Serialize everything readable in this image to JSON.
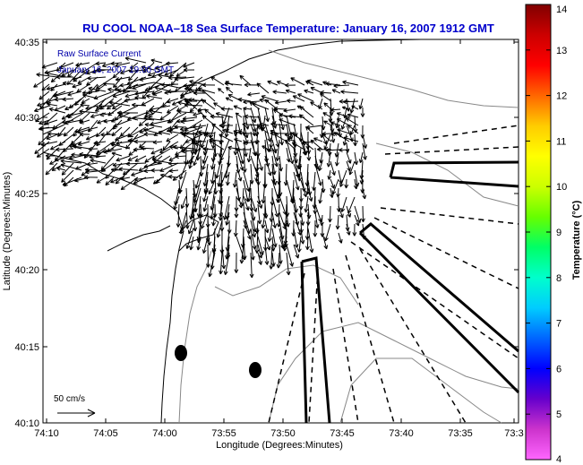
{
  "title": "RU COOL  NOAA–18  Sea Surface Temperature:  January 16, 2007 1912 GMT",
  "legend": {
    "line1": "Raw Surface Current",
    "line2": "January 16, 2007 19:00 GMT"
  },
  "scale_label": "50 cm/s",
  "axes": {
    "xlabel": "Longitude (Degrees:Minutes)",
    "ylabel": "Latitude (Degrees:Minutes)",
    "x_ticks": [
      "74:10",
      "74:05",
      "74:00",
      "73:55",
      "73:50",
      "73:45",
      "73:40",
      "73:35",
      "73:3"
    ],
    "y_ticks": [
      "40:35",
      "40:30",
      "40:25",
      "40:20",
      "40:15",
      "40:10"
    ]
  },
  "colorbar": {
    "label": "Temperature (°C)",
    "ticks": [
      "14",
      "13",
      "12",
      "11",
      "10",
      "9",
      "8",
      "7",
      "6",
      "5",
      "4"
    ],
    "colors": [
      "#ff66ff",
      "#cc33cc",
      "#6600cc",
      "#0000ff",
      "#0066ff",
      "#00ccff",
      "#00ffcc",
      "#00ff66",
      "#66ff00",
      "#ccff00",
      "#ffff00",
      "#ffcc00",
      "#ff6600",
      "#ff0000",
      "#cc0000",
      "#800000"
    ]
  },
  "colors": {
    "title": "#0000cc",
    "legend_text": "#0000aa",
    "axis": "#000000"
  }
}
